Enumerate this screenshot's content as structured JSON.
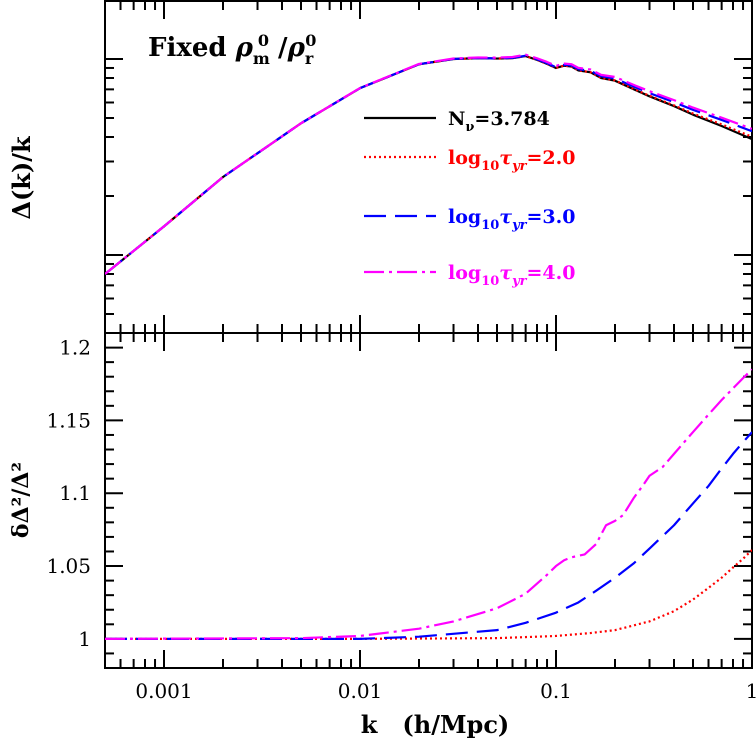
{
  "chart_data": [
    {
      "type": "line",
      "panel": "top",
      "annotation": "Fixed ρ_m^0 / ρ_r^0",
      "ylabel": "Δ(k)/k",
      "xscale": "log",
      "yscale": "log",
      "xlim": [
        0.0005,
        1.0
      ],
      "ylim": [
        0.4,
        20
      ],
      "yticks_labeled": false,
      "legend_position": "center-right",
      "series": [
        {
          "name": "N_ν=3.784",
          "label_base": "N",
          "label_sub": "ν",
          "label_tail": "=3.784",
          "color": "#000000",
          "dash": "solid",
          "x": [
            0.0005,
            0.001,
            0.002,
            0.005,
            0.01,
            0.02,
            0.03,
            0.04,
            0.05,
            0.06,
            0.07,
            0.08,
            0.09,
            0.1,
            0.11,
            0.12,
            0.13,
            0.15,
            0.17,
            0.2,
            0.25,
            0.3,
            0.4,
            0.5,
            0.7,
            1.0
          ],
          "y": [
            0.8,
            1.4,
            2.5,
            4.7,
            7.1,
            9.4,
            10.0,
            10.1,
            10.05,
            10.1,
            10.35,
            9.9,
            9.45,
            9.0,
            9.25,
            9.15,
            8.75,
            8.55,
            8.0,
            7.75,
            7.0,
            6.45,
            5.75,
            5.2,
            4.55,
            3.9
          ]
        },
        {
          "name": "log10 τyr=2.0",
          "label_base": "log",
          "label_sub": "10",
          "label_mid": "τ",
          "label_sub2": "yr",
          "label_tail": "=2.0",
          "color": "#ff0000",
          "dash": "dotted",
          "x": [
            0.0005,
            0.001,
            0.002,
            0.005,
            0.01,
            0.02,
            0.03,
            0.04,
            0.05,
            0.06,
            0.07,
            0.08,
            0.09,
            0.1,
            0.11,
            0.12,
            0.13,
            0.15,
            0.17,
            0.2,
            0.25,
            0.3,
            0.4,
            0.5,
            0.7,
            1.0
          ],
          "y": [
            0.8,
            1.4,
            2.5,
            4.7,
            7.1,
            9.4,
            10.0,
            10.1,
            10.05,
            10.1,
            10.35,
            9.9,
            9.45,
            9.0,
            9.25,
            9.15,
            8.75,
            8.56,
            8.02,
            7.78,
            7.03,
            6.49,
            5.8,
            5.27,
            4.64,
            4.01
          ]
        },
        {
          "name": "log10 τyr=3.0",
          "label_base": "log",
          "label_sub": "10",
          "label_mid": "τ",
          "label_sub2": "yr",
          "label_tail": "=3.0",
          "color": "#0000ff",
          "dash": "dashed",
          "x": [
            0.0005,
            0.001,
            0.002,
            0.005,
            0.01,
            0.02,
            0.03,
            0.04,
            0.05,
            0.06,
            0.07,
            0.08,
            0.09,
            0.1,
            0.11,
            0.12,
            0.13,
            0.15,
            0.17,
            0.2,
            0.25,
            0.3,
            0.4,
            0.5,
            0.7,
            1.0
          ],
          "y": [
            0.8,
            1.4,
            2.5,
            4.7,
            7.1,
            9.41,
            10.01,
            10.11,
            10.07,
            10.13,
            10.39,
            9.96,
            9.52,
            9.08,
            9.34,
            9.26,
            8.87,
            8.7,
            8.17,
            7.95,
            7.22,
            6.7,
            6.02,
            5.5,
            4.89,
            4.28
          ]
        },
        {
          "name": "log10 τyr=4.0",
          "label_base": "log",
          "label_sub": "10",
          "label_mid": "τ",
          "label_sub2": "yr",
          "label_tail": "=4.0",
          "color": "#ff00ff",
          "dash": "dashdot",
          "x": [
            0.0005,
            0.001,
            0.002,
            0.005,
            0.01,
            0.02,
            0.03,
            0.04,
            0.05,
            0.06,
            0.07,
            0.08,
            0.09,
            0.1,
            0.11,
            0.12,
            0.13,
            0.15,
            0.17,
            0.2,
            0.25,
            0.3,
            0.4,
            0.5,
            0.7,
            1.0
          ],
          "y": [
            0.8,
            1.4,
            2.5,
            4.7,
            7.11,
            9.44,
            10.06,
            10.18,
            10.16,
            10.24,
            10.52,
            10.09,
            9.66,
            9.22,
            9.48,
            9.4,
            9.01,
            8.84,
            8.3,
            8.1,
            7.37,
            6.85,
            6.17,
            5.65,
            5.02,
            4.4
          ]
        }
      ]
    },
    {
      "type": "line",
      "panel": "bottom",
      "xlabel": "k   (h/Mpc)",
      "ylabel": "δΔ²/Δ²",
      "xscale": "log",
      "xlim": [
        0.0005,
        1.0
      ],
      "ylim": [
        0.98,
        1.21
      ],
      "xticks": [
        0.001,
        0.01,
        0.1,
        1
      ],
      "xtick_labels": [
        "0.001",
        "0.01",
        "0.1",
        "1"
      ],
      "yticks": [
        1,
        1.05,
        1.1,
        1.15,
        1.2
      ],
      "ytick_labels": [
        "1",
        "1.05",
        "1.1",
        "1.15",
        "1.2"
      ],
      "series": [
        {
          "name": "log10 τyr=2.0",
          "color": "#ff0000",
          "dash": "dotted",
          "x": [
            0.0005,
            0.01,
            0.05,
            0.1,
            0.15,
            0.2,
            0.3,
            0.4,
            0.5,
            0.6,
            0.7,
            0.8,
            0.9,
            1.0
          ],
          "y": [
            1.0,
            1.0,
            1.0005,
            1.002,
            1.004,
            1.006,
            1.012,
            1.019,
            1.027,
            1.035,
            1.042,
            1.049,
            1.055,
            1.061
          ]
        },
        {
          "name": "log10 τyr=3.0",
          "color": "#0000ff",
          "dash": "dashed",
          "x": [
            0.0005,
            0.01,
            0.02,
            0.05,
            0.07,
            0.1,
            0.13,
            0.16,
            0.2,
            0.25,
            0.3,
            0.4,
            0.5,
            0.6,
            0.7,
            0.8,
            0.9,
            1.0
          ],
          "y": [
            1.0,
            1.0,
            1.0015,
            1.006,
            1.011,
            1.018,
            1.025,
            1.033,
            1.042,
            1.052,
            1.062,
            1.078,
            1.093,
            1.105,
            1.117,
            1.127,
            1.135,
            1.142
          ]
        },
        {
          "name": "log10 τyr=4.0",
          "color": "#ff00ff",
          "dash": "dashdot",
          "x": [
            0.0005,
            0.005,
            0.01,
            0.02,
            0.03,
            0.05,
            0.07,
            0.09,
            0.1,
            0.11,
            0.12,
            0.14,
            0.16,
            0.18,
            0.2,
            0.22,
            0.25,
            0.28,
            0.3,
            0.35,
            0.4,
            0.5,
            0.6,
            0.7,
            0.8,
            0.9,
            1.0
          ],
          "y": [
            1.0,
            1.0005,
            1.002,
            1.007,
            1.012,
            1.021,
            1.031,
            1.044,
            1.05,
            1.054,
            1.056,
            1.058,
            1.065,
            1.078,
            1.081,
            1.085,
            1.097,
            1.106,
            1.112,
            1.118,
            1.127,
            1.142,
            1.154,
            1.164,
            1.172,
            1.179,
            1.185
          ]
        }
      ]
    }
  ]
}
